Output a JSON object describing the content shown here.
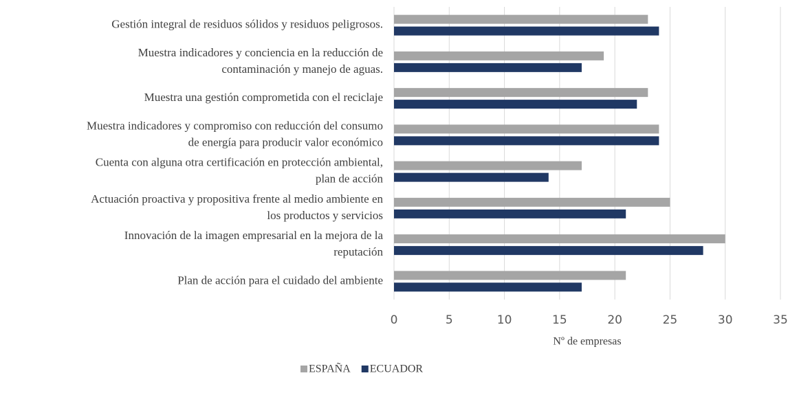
{
  "chart_data": {
    "type": "barh",
    "categories": [
      "Gestión integral de residuos sólidos y residuos peligrosos.",
      "Muestra indicadores y conciencia en la reducción de\ncontaminación y manejo de aguas.",
      "Muestra una gestión comprometida con el reciclaje",
      "Muestra indicadores y compromiso con reducción del consumo\nde energía para producir valor económico",
      "Cuenta con alguna otra certificación en protección ambiental,\nplan de acción",
      "Actuación proactiva y propositiva frente al medio ambiente en\nlos productos y servicios",
      "Innovación de la imagen empresarial en la mejora de la\nreputación",
      "Plan de acción para el cuidado del ambiente"
    ],
    "series": [
      {
        "name": "ESPAÑA",
        "color": "#a5a5a5",
        "values": [
          23,
          19,
          23,
          24,
          17,
          25,
          30,
          21
        ]
      },
      {
        "name": "ECUADOR",
        "color": "#203864",
        "values": [
          24,
          17,
          22,
          24,
          14,
          21,
          28,
          17
        ]
      }
    ],
    "xlabel": "Nº de empresas",
    "xlim": [
      0,
      35
    ],
    "xticks": [
      0,
      5,
      10,
      15,
      20,
      25,
      30,
      35
    ],
    "grid": true,
    "legend": "bottom"
  }
}
